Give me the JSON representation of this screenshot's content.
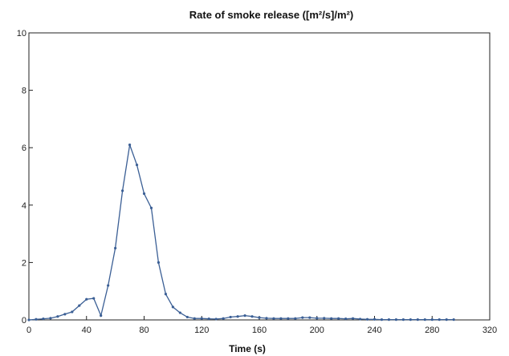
{
  "chart_data": {
    "type": "line",
    "title": "Rate of smoke release ([m²/s]/m²)",
    "xlabel": "Time (s)",
    "ylabel": "",
    "xlim": [
      0,
      320
    ],
    "ylim": [
      0,
      10
    ],
    "xticks": [
      0,
      40,
      80,
      120,
      160,
      200,
      240,
      280,
      320
    ],
    "yticks": [
      0,
      2,
      4,
      6,
      8,
      10
    ],
    "grid": false,
    "line_color": "#3b5f95",
    "series": [
      {
        "x": [
          0,
          5,
          10,
          15,
          20,
          25,
          30,
          35,
          40,
          45,
          50,
          55,
          60,
          65,
          70,
          75,
          80,
          85,
          90,
          95,
          100,
          105,
          110,
          115,
          120,
          125,
          130,
          135,
          140,
          145,
          150,
          155,
          160,
          165,
          170,
          175,
          180,
          185,
          190,
          195,
          200,
          205,
          210,
          215,
          220,
          225,
          230,
          235,
          240,
          245,
          250,
          255,
          260,
          265,
          270,
          275,
          280,
          285,
          290,
          295
        ],
        "y": [
          0.0,
          0.02,
          0.04,
          0.06,
          0.12,
          0.2,
          0.28,
          0.5,
          0.72,
          0.75,
          0.15,
          1.2,
          2.5,
          4.5,
          6.1,
          5.4,
          4.4,
          3.9,
          2.0,
          0.9,
          0.45,
          0.25,
          0.1,
          0.05,
          0.05,
          0.04,
          0.03,
          0.05,
          0.1,
          0.12,
          0.15,
          0.12,
          0.08,
          0.06,
          0.05,
          0.05,
          0.05,
          0.05,
          0.08,
          0.08,
          0.06,
          0.06,
          0.05,
          0.05,
          0.04,
          0.05,
          0.03,
          0.02,
          0.02,
          0.01,
          0.01,
          0.01,
          0.01,
          0.01,
          0.01,
          0.01,
          0.01,
          0.01,
          0.01,
          0.01
        ]
      }
    ]
  }
}
